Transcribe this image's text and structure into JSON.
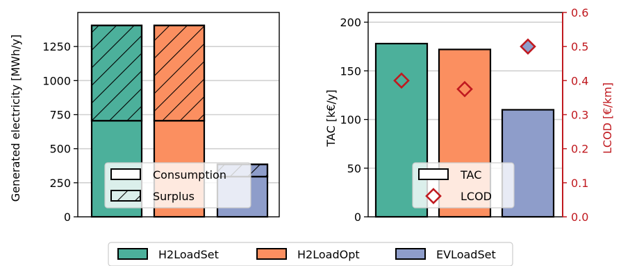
{
  "colors": {
    "H2LoadSet": "#4cb09b",
    "H2LoadOpt": "#fb8f60",
    "EVLoadSet": "#8e9dca",
    "lcod_axis": "#c0191f",
    "grid": "#d0d0d0"
  },
  "legend_bottom": {
    "items": [
      "H2LoadSet",
      "H2LoadOpt",
      "EVLoadSet"
    ]
  },
  "chart_data": [
    {
      "type": "bar",
      "stacked": true,
      "title": "",
      "xlabel": "",
      "ylabel": "Generated electricity [MWh/y]",
      "ylim": [
        0,
        1500
      ],
      "yticks": [
        0,
        250,
        500,
        750,
        1000,
        1250
      ],
      "grid": "y",
      "categories": [
        "H2LoadSet",
        "H2LoadOpt",
        "EVLoadSet"
      ],
      "series": [
        {
          "name": "Consumption",
          "hatch": false,
          "values": [
            705,
            705,
            295
          ]
        },
        {
          "name": "Surplus",
          "hatch": true,
          "values": [
            700,
            700,
            90
          ]
        }
      ],
      "legend": {
        "placement": "lower-center",
        "entries": [
          "Consumption",
          "Surplus"
        ]
      }
    },
    {
      "type": "bar",
      "title": "",
      "xlabel": "",
      "ylabel": "TAC [k€/y]",
      "ylim": [
        0,
        210
      ],
      "yticks": [
        0,
        50,
        100,
        150,
        200
      ],
      "grid": "y",
      "categories": [
        "H2LoadSet",
        "H2LoadOpt",
        "EVLoadSet"
      ],
      "series": [
        {
          "name": "TAC",
          "axis": "left",
          "values": [
            178,
            172,
            110
          ]
        },
        {
          "name": "LCOD",
          "axis": "right",
          "marker": "diamond",
          "values": [
            0.4,
            0.375,
            0.5
          ]
        }
      ],
      "y2label": "LCOD [€/km]",
      "y2lim": [
        0,
        0.6
      ],
      "y2ticks": [
        "0.0",
        "0.1",
        "0.2",
        "0.3",
        "0.4",
        "0.5",
        "0.6"
      ],
      "legend": {
        "placement": "lower-center",
        "entries": [
          "TAC",
          "LCOD"
        ]
      }
    }
  ]
}
